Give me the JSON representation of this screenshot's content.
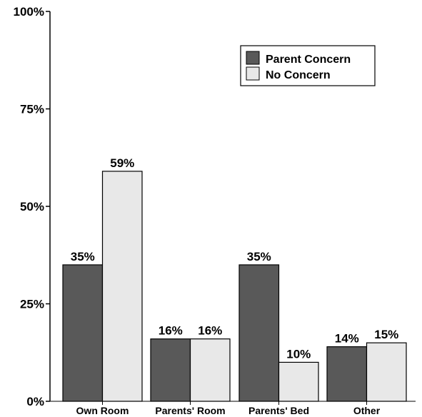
{
  "chart_data": {
    "type": "bar",
    "title": "",
    "xlabel": "",
    "ylabel": "",
    "categories": [
      "Own Room",
      "Parents' Room",
      "Parents' Bed",
      "Other"
    ],
    "series": [
      {
        "name": "Parent Concern",
        "values": [
          35,
          16,
          35,
          14
        ],
        "labels": [
          "35%",
          "16%",
          "35%",
          "14%"
        ],
        "color": "#595959"
      },
      {
        "name": "No Concern",
        "values": [
          59,
          16,
          10,
          15
        ],
        "labels": [
          "59%",
          "16%",
          "10%",
          "15%"
        ],
        "color": "#e8e8e8"
      }
    ],
    "ylim": [
      0,
      100
    ],
    "yticks": [
      0,
      25,
      50,
      75,
      100
    ],
    "ytick_labels": [
      "0%",
      "25%",
      "50%",
      "75%",
      "100%"
    ],
    "grid": false,
    "legend_position": "top-right"
  }
}
